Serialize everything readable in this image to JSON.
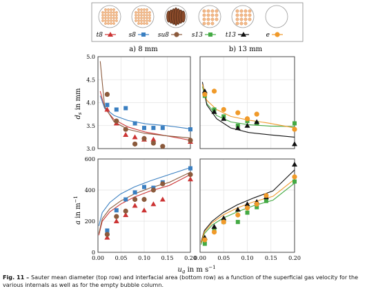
{
  "legend": [
    {
      "label": "t8",
      "color": "#cc3333",
      "marker": "triangle",
      "pattern": "tube-cross"
    },
    {
      "label": "s8",
      "color": "#3a7fc1",
      "marker": "square",
      "pattern": "sieve-small"
    },
    {
      "label": "su8",
      "color": "#8b5a3c",
      "marker": "circle",
      "pattern": "spiral"
    },
    {
      "label": "s13",
      "color": "#44aa44",
      "marker": "square",
      "pattern": "sieve-large"
    },
    {
      "label": "t13",
      "color": "#111111",
      "marker": "triangle",
      "pattern": "tube-large"
    },
    {
      "label": "e",
      "color": "#f09a2a",
      "marker": "circle",
      "pattern": "empty"
    }
  ],
  "panel_titles": {
    "left": "a) 8 mm",
    "right": "b) 13 mm"
  },
  "axis_labels": {
    "x": "u_g in m s⁻¹",
    "y_top": "d_s in mm",
    "y_bottom": "a in m⁻¹"
  },
  "caption": {
    "lead": "Fig. 11 – ",
    "text": "Sauter mean diameter (top row) and interfacial area (bottom row) as a function of the superficial gas velocity for the various internals as well as for the empty bubble column."
  },
  "chart_data": [
    {
      "type": "scatter",
      "panel": "top-left",
      "xlim": [
        0,
        0.2
      ],
      "ylim": [
        3.0,
        5.0
      ],
      "xticks": [
        0.0,
        0.05,
        0.1,
        0.15,
        0.2
      ],
      "yticks": [
        3.0,
        3.5,
        4.0,
        4.5,
        5.0
      ],
      "series": [
        {
          "name": "t8",
          "x": [
            0.02,
            0.04,
            0.06,
            0.08,
            0.1,
            0.12,
            0.2
          ],
          "y": [
            3.85,
            3.55,
            3.3,
            3.25,
            3.2,
            3.2,
            3.15
          ],
          "fit": [
            4.25,
            3.88,
            3.63,
            3.47,
            3.36,
            3.28,
            3.18
          ]
        },
        {
          "name": "s8",
          "x": [
            0.02,
            0.04,
            0.06,
            0.08,
            0.1,
            0.12,
            0.14,
            0.2
          ],
          "y": [
            3.95,
            3.85,
            3.88,
            3.55,
            3.45,
            3.45,
            3.45,
            3.42
          ],
          "fit": [
            4.15,
            3.88,
            3.72,
            3.61,
            3.54,
            3.5,
            3.43
          ]
        },
        {
          "name": "su8",
          "x": [
            0.02,
            0.04,
            0.06,
            0.08,
            0.1,
            0.12,
            0.14,
            0.2
          ],
          "y": [
            4.18,
            3.6,
            3.42,
            3.1,
            3.22,
            3.12,
            3.05,
            3.18
          ],
          "fit": [
            4.9,
            3.92,
            3.58,
            3.42,
            3.33,
            3.28,
            3.23
          ]
        }
      ]
    },
    {
      "type": "scatter",
      "panel": "top-right",
      "xlim": [
        0,
        0.2
      ],
      "ylim": [
        3.0,
        5.0
      ],
      "xticks": [
        0.0,
        0.05,
        0.1,
        0.15,
        0.2
      ],
      "yticks": [
        3.0,
        3.5,
        4.0,
        4.5,
        5.0
      ],
      "series": [
        {
          "name": "s13",
          "x": [
            0.01,
            0.03,
            0.05,
            0.08,
            0.1,
            0.12,
            0.2
          ],
          "y": [
            4.15,
            3.85,
            3.7,
            3.5,
            3.6,
            3.55,
            3.55
          ],
          "fit": [
            4.35,
            3.98,
            3.72,
            3.58,
            3.52,
            3.49,
            3.48
          ]
        },
        {
          "name": "t13",
          "x": [
            0.01,
            0.03,
            0.05,
            0.08,
            0.1,
            0.12,
            0.2
          ],
          "y": [
            4.25,
            3.8,
            3.65,
            3.45,
            3.5,
            3.58,
            3.1
          ],
          "fit": [
            4.45,
            3.95,
            3.65,
            3.45,
            3.35,
            3.3,
            3.25
          ]
        },
        {
          "name": "e",
          "x": [
            0.01,
            0.03,
            0.05,
            0.08,
            0.1,
            0.12,
            0.2
          ],
          "y": [
            4.18,
            4.25,
            3.85,
            3.78,
            3.65,
            3.75,
            3.42
          ],
          "fit": [
            4.4,
            4.05,
            3.85,
            3.7,
            3.62,
            3.55,
            3.45
          ]
        }
      ]
    },
    {
      "type": "scatter",
      "panel": "bottom-left",
      "xlim": [
        0,
        0.2
      ],
      "ylim": [
        0,
        600
      ],
      "xticks": [
        0.0,
        0.05,
        0.1,
        0.15,
        0.2
      ],
      "yticks": [
        0,
        200,
        400,
        600
      ],
      "series": [
        {
          "name": "t8",
          "x": [
            0.02,
            0.04,
            0.06,
            0.08,
            0.1,
            0.12,
            0.14,
            0.2
          ],
          "y": [
            95,
            200,
            240,
            300,
            270,
            310,
            340,
            470
          ],
          "fit": [
            110,
            200,
            260,
            310,
            355,
            395,
            430,
            500
          ]
        },
        {
          "name": "s8",
          "x": [
            0.02,
            0.04,
            0.06,
            0.08,
            0.1,
            0.12,
            0.14,
            0.2
          ],
          "y": [
            140,
            270,
            340,
            385,
            420,
            415,
            450,
            540
          ],
          "fit": [
            170,
            255,
            320,
            375,
            420,
            460,
            500,
            545
          ]
        },
        {
          "name": "su8",
          "x": [
            0.02,
            0.04,
            0.06,
            0.08,
            0.1,
            0.12,
            0.14,
            0.2
          ],
          "y": [
            115,
            230,
            265,
            340,
            340,
            400,
            440,
            500
          ],
          "fit": [
            120,
            215,
            280,
            330,
            375,
            415,
            450,
            515
          ]
        }
      ]
    },
    {
      "type": "scatter",
      "panel": "bottom-right",
      "xlim": [
        0,
        0.2
      ],
      "ylim": [
        0,
        600
      ],
      "xticks": [
        0.0,
        0.05,
        0.1,
        0.15,
        0.2
      ],
      "yticks": [
        0,
        200,
        400,
        600
      ],
      "series": [
        {
          "name": "s13",
          "x": [
            0.01,
            0.03,
            0.05,
            0.08,
            0.1,
            0.12,
            0.14,
            0.2
          ],
          "y": [
            55,
            150,
            195,
            195,
            255,
            290,
            330,
            455
          ],
          "fit": [
            50,
            120,
            175,
            220,
            260,
            300,
            335,
            445
          ]
        },
        {
          "name": "t13",
          "x": [
            0.01,
            0.03,
            0.05,
            0.08,
            0.1,
            0.12,
            0.14,
            0.2
          ],
          "y": [
            95,
            165,
            220,
            275,
            310,
            325,
            355,
            565
          ],
          "fit": [
            65,
            140,
            200,
            255,
            305,
            350,
            395,
            530
          ]
        },
        {
          "name": "e",
          "x": [
            0.01,
            0.03,
            0.05,
            0.08,
            0.1,
            0.12,
            0.14,
            0.2
          ],
          "y": [
            80,
            130,
            195,
            240,
            285,
            310,
            365,
            485
          ],
          "fit": [
            60,
            130,
            190,
            240,
            285,
            325,
            360,
            470
          ]
        }
      ]
    }
  ]
}
